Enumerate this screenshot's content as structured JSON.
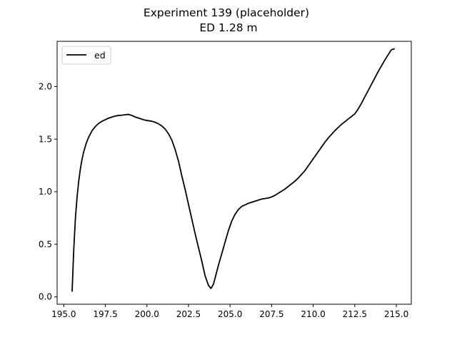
{
  "chart_data": {
    "type": "line",
    "title": "Experiment 139 (placeholder)",
    "subtitle": "ED 1.28 m",
    "xlabel": "",
    "ylabel": "",
    "xlim": [
      194.6,
      215.9
    ],
    "ylim": [
      -0.07,
      2.43
    ],
    "xticks": [
      195.0,
      197.5,
      200.0,
      202.5,
      205.0,
      207.5,
      210.0,
      212.5,
      215.0
    ],
    "xtick_labels": [
      "195.0",
      "197.5",
      "200.0",
      "202.5",
      "205.0",
      "207.5",
      "210.0",
      "212.5",
      "215.0"
    ],
    "yticks": [
      0.0,
      0.5,
      1.0,
      1.5,
      2.0
    ],
    "ytick_labels": [
      "0.0",
      "0.5",
      "1.0",
      "1.5",
      "2.0"
    ],
    "grid": false,
    "legend": "top-left",
    "series": [
      {
        "name": "ed",
        "color": "#000000",
        "x": [
          195.5,
          195.6,
          195.7,
          195.8,
          195.9,
          196.0,
          196.1,
          196.2,
          196.35,
          196.5,
          196.7,
          196.9,
          197.1,
          197.3,
          197.5,
          197.7,
          197.9,
          198.1,
          198.3,
          198.5,
          198.7,
          198.9,
          199.1,
          199.3,
          199.5,
          199.7,
          199.9,
          200.1,
          200.3,
          200.5,
          200.7,
          200.9,
          201.1,
          201.3,
          201.5,
          201.7,
          201.9,
          202.1,
          202.3,
          202.5,
          202.7,
          202.9,
          203.1,
          203.3,
          203.5,
          203.7,
          203.85,
          204.0,
          204.15,
          204.3,
          204.5,
          204.7,
          204.9,
          205.1,
          205.3,
          205.5,
          205.7,
          205.9,
          206.1,
          206.3,
          206.5,
          206.7,
          206.9,
          207.1,
          207.3,
          207.5,
          207.7,
          207.9,
          208.1,
          208.3,
          208.5,
          208.7,
          208.9,
          209.1,
          209.3,
          209.5,
          209.7,
          209.9,
          210.1,
          210.3,
          210.5,
          210.7,
          210.9,
          211.1,
          211.3,
          211.5,
          211.7,
          211.9,
          212.1,
          212.3,
          212.5,
          212.7,
          212.9,
          213.1,
          213.3,
          213.5,
          213.7,
          213.9,
          214.1,
          214.3,
          214.5,
          214.7,
          214.9
        ],
        "y": [
          0.05,
          0.45,
          0.75,
          0.95,
          1.1,
          1.22,
          1.31,
          1.38,
          1.46,
          1.52,
          1.58,
          1.62,
          1.65,
          1.67,
          1.685,
          1.7,
          1.71,
          1.72,
          1.725,
          1.728,
          1.732,
          1.735,
          1.725,
          1.71,
          1.7,
          1.69,
          1.68,
          1.675,
          1.67,
          1.66,
          1.645,
          1.625,
          1.595,
          1.55,
          1.49,
          1.4,
          1.29,
          1.15,
          1.02,
          0.88,
          0.74,
          0.6,
          0.47,
          0.34,
          0.2,
          0.11,
          0.08,
          0.12,
          0.21,
          0.3,
          0.41,
          0.52,
          0.63,
          0.72,
          0.785,
          0.83,
          0.86,
          0.875,
          0.89,
          0.9,
          0.91,
          0.92,
          0.93,
          0.935,
          0.94,
          0.95,
          0.965,
          0.985,
          1.005,
          1.025,
          1.05,
          1.075,
          1.1,
          1.13,
          1.165,
          1.2,
          1.245,
          1.29,
          1.335,
          1.38,
          1.425,
          1.47,
          1.51,
          1.545,
          1.58,
          1.61,
          1.64,
          1.665,
          1.69,
          1.715,
          1.74,
          1.785,
          1.84,
          1.9,
          1.96,
          2.02,
          2.08,
          2.14,
          2.195,
          2.25,
          2.3,
          2.35,
          2.36
        ]
      }
    ]
  }
}
